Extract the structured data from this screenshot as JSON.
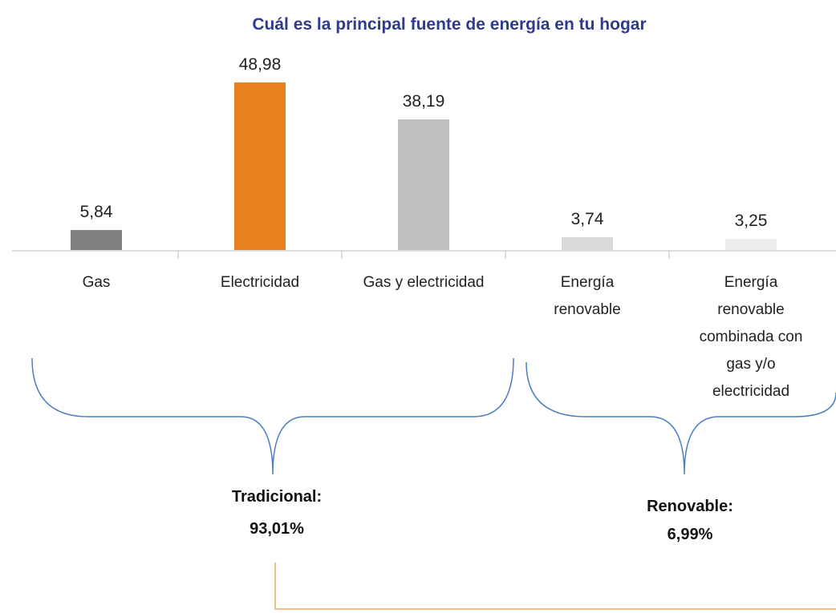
{
  "chart_data": {
    "type": "bar",
    "title": "Cuál es la principal fuente de energía en tu hogar",
    "categories": [
      "Gas",
      "Electricidad",
      "Gas y electricidad",
      "Energía renovable",
      "Energía renovable combinada con gas y/o electricidad"
    ],
    "values": [
      5.84,
      48.98,
      38.19,
      3.74,
      3.25
    ],
    "value_labels": [
      "5,84",
      "48,98",
      "38,19",
      "3,74",
      "3,25"
    ],
    "colors": [
      "#7f7f7f",
      "#e8821e",
      "#bfbfbf",
      "#d9d9d9",
      "#ececec"
    ],
    "annotations": [
      {
        "label": "Tradicional:",
        "value_label": "93,01%"
      },
      {
        "label": "Renovable:",
        "value_label": "6,99%"
      }
    ]
  }
}
